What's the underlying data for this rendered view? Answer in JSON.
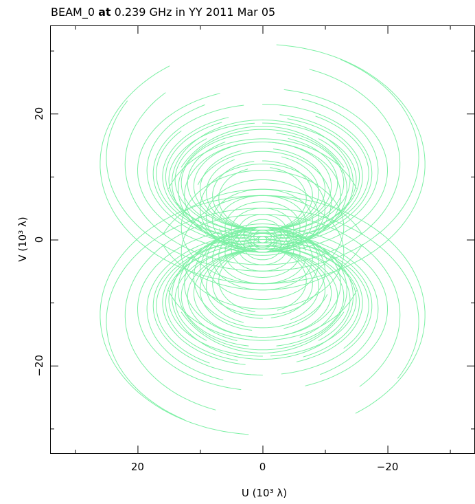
{
  "colors": {
    "track": "#7CF0A4",
    "frame": "#000000",
    "background": "#ffffff"
  },
  "chart_data": {
    "type": "scatter",
    "title": "BEAM_0 at 0.239 GHz in YY  2011 Mar 05",
    "title_parts": {
      "prefix": "BEAM_0 ",
      "bold": "at",
      "suffix": " 0.239 GHz in YY  2011 Mar 05"
    },
    "xlabel": "U (10³ λ)",
    "ylabel": "V (10³ λ)",
    "xlim": [
      34,
      -34
    ],
    "ylim": [
      -34,
      34
    ],
    "x_ticks": [
      {
        "value": 20,
        "label": "20"
      },
      {
        "value": 0,
        "label": "0"
      },
      {
        "value": -20,
        "label": "−20"
      }
    ],
    "y_ticks": [
      {
        "value": 20,
        "label": "20"
      },
      {
        "value": 0,
        "label": "0"
      },
      {
        "value": -20,
        "label": "−20"
      }
    ],
    "x_minor_ticks": [
      30,
      10,
      -10,
      -30
    ],
    "y_minor_ticks": [
      30,
      10,
      -10,
      -30
    ],
    "grid": false,
    "legend": "none",
    "series": [
      {
        "description": "uv-coverage tracks (conjugate-symmetric elliptical arcs)",
        "color": "#7CF0A4",
        "tracks": [
          {
            "cx": 0,
            "cy": 12,
            "rx": 26,
            "ry": 19,
            "t0": 95,
            "t1": 415
          },
          {
            "cx": 0,
            "cy": 13,
            "rx": 25,
            "ry": 18,
            "t0": 120,
            "t1": 390
          },
          {
            "cx": 0,
            "cy": 12,
            "rx": 22,
            "ry": 16,
            "t0": 110,
            "t1": 405
          },
          {
            "cx": 0,
            "cy": 11,
            "rx": 20,
            "ry": 13,
            "t0": 100,
            "t1": 430
          },
          {
            "cx": 0,
            "cy": 11,
            "rx": 18.5,
            "ry": 12,
            "t0": 110,
            "t1": 420
          },
          {
            "cx": 0,
            "cy": 10.5,
            "rx": 17.5,
            "ry": 11,
            "t0": 90,
            "t1": 440
          },
          {
            "cx": 0,
            "cy": 10.5,
            "rx": 17,
            "ry": 10.5,
            "t0": 120,
            "t1": 400
          },
          {
            "cx": 0,
            "cy": 10,
            "rx": 16,
            "ry": 10,
            "t0": 100,
            "t1": 430
          },
          {
            "cx": 0,
            "cy": 10,
            "rx": 15.5,
            "ry": 9.5,
            "t0": 105,
            "t1": 425
          },
          {
            "cx": 0,
            "cy": 9.5,
            "rx": 15,
            "ry": 9,
            "t0": 90,
            "t1": 445
          },
          {
            "cx": 0,
            "cy": 9.5,
            "rx": 14,
            "ry": 8.5,
            "t0": 130,
            "t1": 410
          },
          {
            "cx": 0,
            "cy": 9,
            "rx": 13,
            "ry": 8,
            "t0": 100,
            "t1": 440
          },
          {
            "cx": 0,
            "cy": 9,
            "rx": 12,
            "ry": 7.5,
            "t0": 110,
            "t1": 420
          },
          {
            "cx": 0,
            "cy": 8.5,
            "rx": 11,
            "ry": 7,
            "t0": 95,
            "t1": 435
          },
          {
            "cx": 0,
            "cy": 8,
            "rx": 10,
            "ry": 6.5,
            "t0": 100,
            "t1": 430
          },
          {
            "cx": 0,
            "cy": 7.5,
            "rx": 9,
            "ry": 6,
            "t0": 110,
            "t1": 420
          },
          {
            "cx": 0,
            "cy": 7,
            "rx": 8,
            "ry": 5.5,
            "t0": 90,
            "t1": 440
          },
          {
            "cx": 0,
            "cy": 6.5,
            "rx": 7,
            "ry": 5,
            "t0": 100,
            "t1": 430
          },
          {
            "cx": 0,
            "cy": 9,
            "rx": 14.5,
            "ry": 10,
            "t0": 0,
            "t1": 360
          },
          {
            "cx": 0,
            "cy": 8,
            "rx": 13.5,
            "ry": 9.5,
            "t0": 0,
            "t1": 360
          },
          {
            "cx": 0,
            "cy": 7,
            "rx": 12.5,
            "ry": 8.5,
            "t0": 0,
            "t1": 360
          },
          {
            "cx": 0,
            "cy": 6,
            "rx": 11,
            "ry": 8,
            "t0": 20,
            "t1": 340
          },
          {
            "cx": 0,
            "cy": 5,
            "rx": 10,
            "ry": 7,
            "t0": 0,
            "t1": 360
          },
          {
            "cx": 0,
            "cy": 3.5,
            "rx": 9,
            "ry": 6,
            "t0": 0,
            "t1": 360
          },
          {
            "cx": 0,
            "cy": 3,
            "rx": 8,
            "ry": 5,
            "t0": 0,
            "t1": 360
          },
          {
            "cx": 0,
            "cy": 2.5,
            "rx": 7,
            "ry": 4.5,
            "t0": 10,
            "t1": 350
          },
          {
            "cx": 0,
            "cy": 2,
            "rx": 6,
            "ry": 4,
            "t0": 0,
            "t1": 360
          },
          {
            "cx": 0,
            "cy": 1.5,
            "rx": 5,
            "ry": 3.5,
            "t0": 0,
            "t1": 360
          },
          {
            "cx": 0,
            "cy": 1,
            "rx": 4,
            "ry": 3,
            "t0": 0,
            "t1": 360
          },
          {
            "cx": 0,
            "cy": 1,
            "rx": 3,
            "ry": 2.2,
            "t0": 0,
            "t1": 360
          },
          {
            "cx": 0,
            "cy": 0.5,
            "rx": 2.2,
            "ry": 1.5,
            "t0": 0,
            "t1": 360
          },
          {
            "cx": 0,
            "cy": 0.5,
            "rx": 1.4,
            "ry": 1,
            "t0": 0,
            "t1": 360
          },
          {
            "cx": 0,
            "cy": 0,
            "rx": 0.7,
            "ry": 0.5,
            "t0": 0,
            "t1": 360
          },
          {
            "cx": 0,
            "cy": 4,
            "rx": 16,
            "ry": 12,
            "t0": 20,
            "t1": 160
          },
          {
            "cx": 0,
            "cy": 3,
            "rx": 17,
            "ry": 11,
            "t0": 200,
            "t1": 340
          },
          {
            "cx": 0,
            "cy": 5,
            "rx": 15,
            "ry": 13,
            "t0": 30,
            "t1": 150
          },
          {
            "cx": 0,
            "cy": 2,
            "rx": 13,
            "ry": 9,
            "t0": 0,
            "t1": 360
          }
        ]
      }
    ]
  }
}
